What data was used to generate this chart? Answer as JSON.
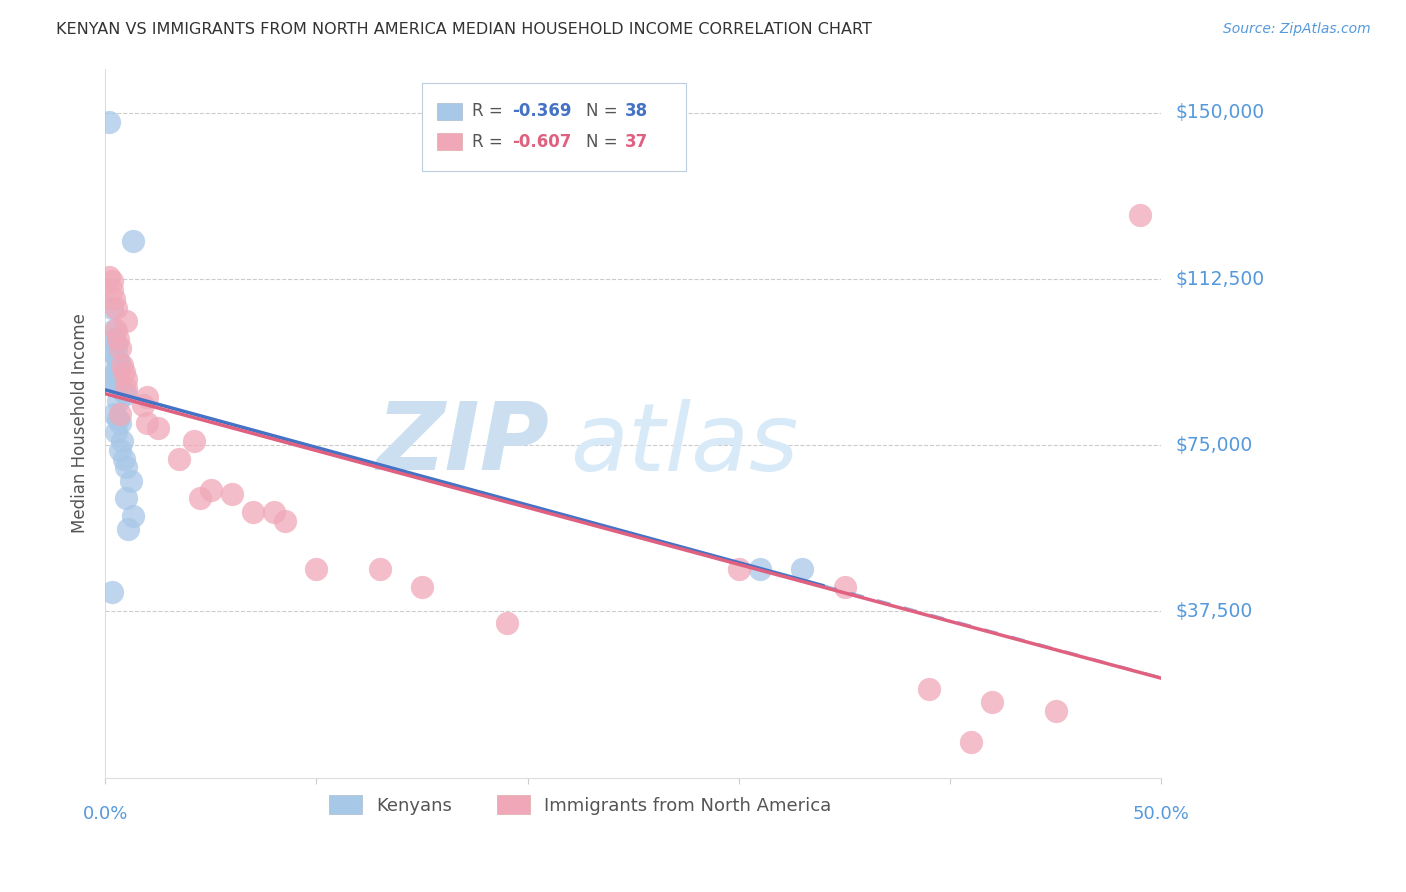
{
  "title": "KENYAN VS IMMIGRANTS FROM NORTH AMERICA MEDIAN HOUSEHOLD INCOME CORRELATION CHART",
  "source": "Source: ZipAtlas.com",
  "ylabel": "Median Household Income",
  "yticks": [
    0,
    37500,
    75000,
    112500,
    150000
  ],
  "ytick_labels": [
    "",
    "$37,500",
    "$75,000",
    "$112,500",
    "$150,000"
  ],
  "xlim": [
    0.0,
    0.5
  ],
  "ylim": [
    0,
    160000
  ],
  "legend_label_blue": "Kenyans",
  "legend_label_pink": "Immigrants from North America",
  "blue_color": "#a8c8e8",
  "pink_color": "#f0a8b8",
  "blue_line_color": "#4472c4",
  "pink_line_color": "#e06080",
  "blue_r": "-0.369",
  "blue_n": "38",
  "pink_r": "-0.607",
  "pink_n": "37",
  "blue_dots": [
    [
      0.002,
      148000
    ],
    [
      0.013,
      121000
    ],
    [
      0.003,
      106000
    ],
    [
      0.004,
      101000
    ],
    [
      0.004,
      99000
    ],
    [
      0.005,
      98000
    ],
    [
      0.005,
      97000
    ],
    [
      0.003,
      96000
    ],
    [
      0.005,
      95000
    ],
    [
      0.006,
      94000
    ],
    [
      0.006,
      93500
    ],
    [
      0.007,
      93000
    ],
    [
      0.005,
      92000
    ],
    [
      0.004,
      91000
    ],
    [
      0.006,
      91000
    ],
    [
      0.003,
      90000
    ],
    [
      0.005,
      89000
    ],
    [
      0.007,
      88500
    ],
    [
      0.007,
      88000
    ],
    [
      0.008,
      87500
    ],
    [
      0.009,
      87000
    ],
    [
      0.01,
      86500
    ],
    [
      0.006,
      85000
    ],
    [
      0.004,
      82000
    ],
    [
      0.006,
      81000
    ],
    [
      0.007,
      80000
    ],
    [
      0.005,
      78000
    ],
    [
      0.008,
      76000
    ],
    [
      0.007,
      74000
    ],
    [
      0.009,
      72000
    ],
    [
      0.01,
      70000
    ],
    [
      0.012,
      67000
    ],
    [
      0.01,
      63000
    ],
    [
      0.013,
      59000
    ],
    [
      0.011,
      56000
    ],
    [
      0.31,
      47000
    ],
    [
      0.33,
      47000
    ],
    [
      0.003,
      42000
    ]
  ],
  "pink_dots": [
    [
      0.002,
      113000
    ],
    [
      0.003,
      112000
    ],
    [
      0.003,
      110000
    ],
    [
      0.004,
      108000
    ],
    [
      0.005,
      106000
    ],
    [
      0.01,
      103000
    ],
    [
      0.005,
      101000
    ],
    [
      0.006,
      99000
    ],
    [
      0.007,
      97000
    ],
    [
      0.49,
      127000
    ],
    [
      0.008,
      93000
    ],
    [
      0.009,
      91500
    ],
    [
      0.01,
      90000
    ],
    [
      0.01,
      88000
    ],
    [
      0.02,
      86000
    ],
    [
      0.018,
      84000
    ],
    [
      0.007,
      82000
    ],
    [
      0.02,
      80000
    ],
    [
      0.025,
      79000
    ],
    [
      0.042,
      76000
    ],
    [
      0.035,
      72000
    ],
    [
      0.05,
      65000
    ],
    [
      0.06,
      64000
    ],
    [
      0.045,
      63000
    ],
    [
      0.07,
      60000
    ],
    [
      0.08,
      60000
    ],
    [
      0.085,
      58000
    ],
    [
      0.1,
      47000
    ],
    [
      0.13,
      47000
    ],
    [
      0.15,
      43000
    ],
    [
      0.19,
      35000
    ],
    [
      0.3,
      47000
    ],
    [
      0.35,
      43000
    ],
    [
      0.39,
      20000
    ],
    [
      0.41,
      8000
    ],
    [
      0.42,
      17000
    ],
    [
      0.45,
      15000
    ]
  ],
  "background_color": "#ffffff",
  "grid_color": "#cccccc",
  "watermark_zip_color": "#c8dff0",
  "watermark_atlas_color": "#b8d4e8",
  "title_color": "#333333",
  "axis_label_color": "#555555",
  "ytick_label_color": "#5599dd",
  "xtick_label_color": "#5599dd"
}
